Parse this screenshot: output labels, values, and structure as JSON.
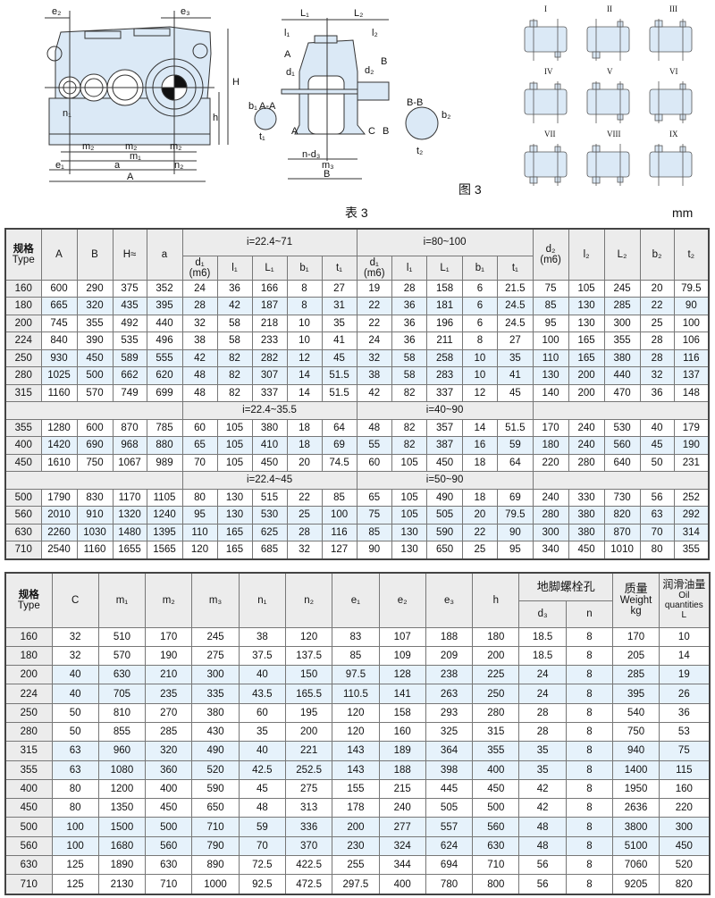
{
  "figure": {
    "caption": "图 3",
    "front_view_labels": {
      "e2": "e₂",
      "e3": "e₃",
      "H": "H",
      "h": "h",
      "n1": "n₁",
      "m2": "m₂",
      "m1": "m₁",
      "e1": "e₁",
      "a": "a",
      "n2": "n₂",
      "A": "A"
    },
    "side_view_labels": {
      "L1": "L₁",
      "L2": "L₂",
      "l1": "l₁",
      "l2": "l₂",
      "A_mark": "A",
      "d1": "d₁",
      "d2": "d₂",
      "B_mark": "B",
      "b1": "b₁",
      "AA": "A-A",
      "t1": "t₁",
      "BB": "B-B",
      "b2": "b₂",
      "C": "C",
      "nd3": "n-d₃",
      "m3": "m₃",
      "B": "B",
      "t2": "t₂"
    },
    "assembly_types": [
      "I",
      "II",
      "III",
      "IV",
      "V",
      "VI",
      "VII",
      "VIII",
      "IX"
    ],
    "shade_color": "#dbe9f6"
  },
  "table3": {
    "caption": "表 3",
    "unit": "mm",
    "headers": {
      "type": "规格",
      "type_en": "Type",
      "A": "A",
      "B": "B",
      "H": "H≈",
      "a": "a",
      "d1": "d₁",
      "m6": "(m6)",
      "l1": "l₁",
      "L1": "L₁",
      "b1": "b₁",
      "t1": "t₁",
      "d2": "d₂",
      "l2": "l₂",
      "L2": "L₂",
      "b2": "b₂",
      "t2": "t₂"
    },
    "sections": [
      {
        "ratio1": "i=22.4~71",
        "ratio2": "i=80~100",
        "rows": [
          [
            "160",
            "600",
            "290",
            "375",
            "352",
            "24",
            "36",
            "166",
            "8",
            "27",
            "19",
            "28",
            "158",
            "6",
            "21.5",
            "75",
            "105",
            "245",
            "20",
            "79.5"
          ],
          [
            "180",
            "665",
            "320",
            "435",
            "395",
            "28",
            "42",
            "187",
            "8",
            "31",
            "22",
            "36",
            "181",
            "6",
            "24.5",
            "85",
            "130",
            "285",
            "22",
            "90"
          ],
          [
            "200",
            "745",
            "355",
            "492",
            "440",
            "32",
            "58",
            "218",
            "10",
            "35",
            "22",
            "36",
            "196",
            "6",
            "24.5",
            "95",
            "130",
            "300",
            "25",
            "100"
          ],
          [
            "224",
            "840",
            "390",
            "535",
            "496",
            "38",
            "58",
            "233",
            "10",
            "41",
            "24",
            "36",
            "211",
            "8",
            "27",
            "100",
            "165",
            "355",
            "28",
            "106"
          ],
          [
            "250",
            "930",
            "450",
            "589",
            "555",
            "42",
            "82",
            "282",
            "12",
            "45",
            "32",
            "58",
            "258",
            "10",
            "35",
            "110",
            "165",
            "380",
            "28",
            "116"
          ],
          [
            "280",
            "1025",
            "500",
            "662",
            "620",
            "48",
            "82",
            "307",
            "14",
            "51.5",
            "38",
            "58",
            "283",
            "10",
            "41",
            "130",
            "200",
            "440",
            "32",
            "137"
          ],
          [
            "315",
            "1160",
            "570",
            "749",
            "699",
            "48",
            "82",
            "337",
            "14",
            "51.5",
            "42",
            "82",
            "337",
            "12",
            "45",
            "140",
            "200",
            "470",
            "36",
            "148"
          ]
        ]
      },
      {
        "ratio1": "i=22.4~35.5",
        "ratio2": "i=40~90",
        "rows": [
          [
            "355",
            "1280",
            "600",
            "870",
            "785",
            "60",
            "105",
            "380",
            "18",
            "64",
            "48",
            "82",
            "357",
            "14",
            "51.5",
            "170",
            "240",
            "530",
            "40",
            "179"
          ],
          [
            "400",
            "1420",
            "690",
            "968",
            "880",
            "65",
            "105",
            "410",
            "18",
            "69",
            "55",
            "82",
            "387",
            "16",
            "59",
            "180",
            "240",
            "560",
            "45",
            "190"
          ],
          [
            "450",
            "1610",
            "750",
            "1067",
            "989",
            "70",
            "105",
            "450",
            "20",
            "74.5",
            "60",
            "105",
            "450",
            "18",
            "64",
            "220",
            "280",
            "640",
            "50",
            "231"
          ]
        ]
      },
      {
        "ratio1": "i=22.4~45",
        "ratio2": "i=50~90",
        "rows": [
          [
            "500",
            "1790",
            "830",
            "1170",
            "1105",
            "80",
            "130",
            "515",
            "22",
            "85",
            "65",
            "105",
            "490",
            "18",
            "69",
            "240",
            "330",
            "730",
            "56",
            "252"
          ],
          [
            "560",
            "2010",
            "910",
            "1320",
            "1240",
            "95",
            "130",
            "530",
            "25",
            "100",
            "75",
            "105",
            "505",
            "20",
            "79.5",
            "280",
            "380",
            "820",
            "63",
            "292"
          ],
          [
            "630",
            "2260",
            "1030",
            "1480",
            "1395",
            "110",
            "165",
            "625",
            "28",
            "116",
            "85",
            "130",
            "590",
            "22",
            "90",
            "300",
            "380",
            "870",
            "70",
            "314"
          ],
          [
            "710",
            "2540",
            "1160",
            "1655",
            "1565",
            "120",
            "165",
            "685",
            "32",
            "127",
            "90",
            "130",
            "650",
            "25",
            "95",
            "340",
            "450",
            "1010",
            "80",
            "355"
          ]
        ]
      }
    ],
    "blue_rows": [
      "180",
      "250",
      "280",
      "400",
      "560",
      "630"
    ]
  },
  "table4": {
    "headers": {
      "type": "规格",
      "type_en": "Type",
      "C": "C",
      "m1": "m₁",
      "m2": "m₂",
      "m3": "m₃",
      "n1": "n₁",
      "n2": "n₂",
      "e1": "e₁",
      "e2": "e₂",
      "e3": "e₃",
      "h": "h",
      "bolt": "地脚螺栓孔",
      "d3": "d₃",
      "n": "n",
      "weight_cn": "质量",
      "weight_en": "Weight",
      "weight_unit": "kg",
      "oil_cn": "润滑油量",
      "oil_en1": "Oil",
      "oil_en2": "quantities",
      "oil_unit": "L"
    },
    "rows": [
      [
        "160",
        "32",
        "510",
        "170",
        "245",
        "38",
        "120",
        "83",
        "107",
        "188",
        "180",
        "18.5",
        "8",
        "170",
        "10"
      ],
      [
        "180",
        "32",
        "570",
        "190",
        "275",
        "37.5",
        "137.5",
        "85",
        "109",
        "209",
        "200",
        "18.5",
        "8",
        "205",
        "14"
      ],
      [
        "200",
        "40",
        "630",
        "210",
        "300",
        "40",
        "150",
        "97.5",
        "128",
        "238",
        "225",
        "24",
        "8",
        "285",
        "19"
      ],
      [
        "224",
        "40",
        "705",
        "235",
        "335",
        "43.5",
        "165.5",
        "110.5",
        "141",
        "263",
        "250",
        "24",
        "8",
        "395",
        "26"
      ],
      [
        "250",
        "50",
        "810",
        "270",
        "380",
        "60",
        "195",
        "120",
        "158",
        "293",
        "280",
        "28",
        "8",
        "540",
        "36"
      ],
      [
        "280",
        "50",
        "855",
        "285",
        "430",
        "35",
        "200",
        "120",
        "160",
        "325",
        "315",
        "28",
        "8",
        "750",
        "53"
      ],
      [
        "315",
        "63",
        "960",
        "320",
        "490",
        "40",
        "221",
        "143",
        "189",
        "364",
        "355",
        "35",
        "8",
        "940",
        "75"
      ],
      [
        "355",
        "63",
        "1080",
        "360",
        "520",
        "42.5",
        "252.5",
        "143",
        "188",
        "398",
        "400",
        "35",
        "8",
        "1400",
        "115"
      ],
      [
        "400",
        "80",
        "1200",
        "400",
        "590",
        "45",
        "275",
        "155",
        "215",
        "445",
        "450",
        "42",
        "8",
        "1950",
        "160"
      ],
      [
        "450",
        "80",
        "1350",
        "450",
        "650",
        "48",
        "313",
        "178",
        "240",
        "505",
        "500",
        "42",
        "8",
        "2636",
        "220"
      ],
      [
        "500",
        "100",
        "1500",
        "500",
        "710",
        "59",
        "336",
        "200",
        "277",
        "557",
        "560",
        "48",
        "8",
        "3800",
        "300"
      ],
      [
        "560",
        "100",
        "1680",
        "560",
        "790",
        "70",
        "370",
        "230",
        "324",
        "624",
        "630",
        "48",
        "8",
        "5100",
        "450"
      ],
      [
        "630",
        "125",
        "1890",
        "630",
        "890",
        "72.5",
        "422.5",
        "255",
        "344",
        "694",
        "710",
        "56",
        "8",
        "7060",
        "520"
      ],
      [
        "710",
        "125",
        "2130",
        "710",
        "1000",
        "92.5",
        "472.5",
        "297.5",
        "400",
        "780",
        "800",
        "56",
        "8",
        "9205",
        "820"
      ]
    ],
    "blue_rows": [
      "200",
      "224",
      "315",
      "355",
      "500",
      "560"
    ]
  }
}
